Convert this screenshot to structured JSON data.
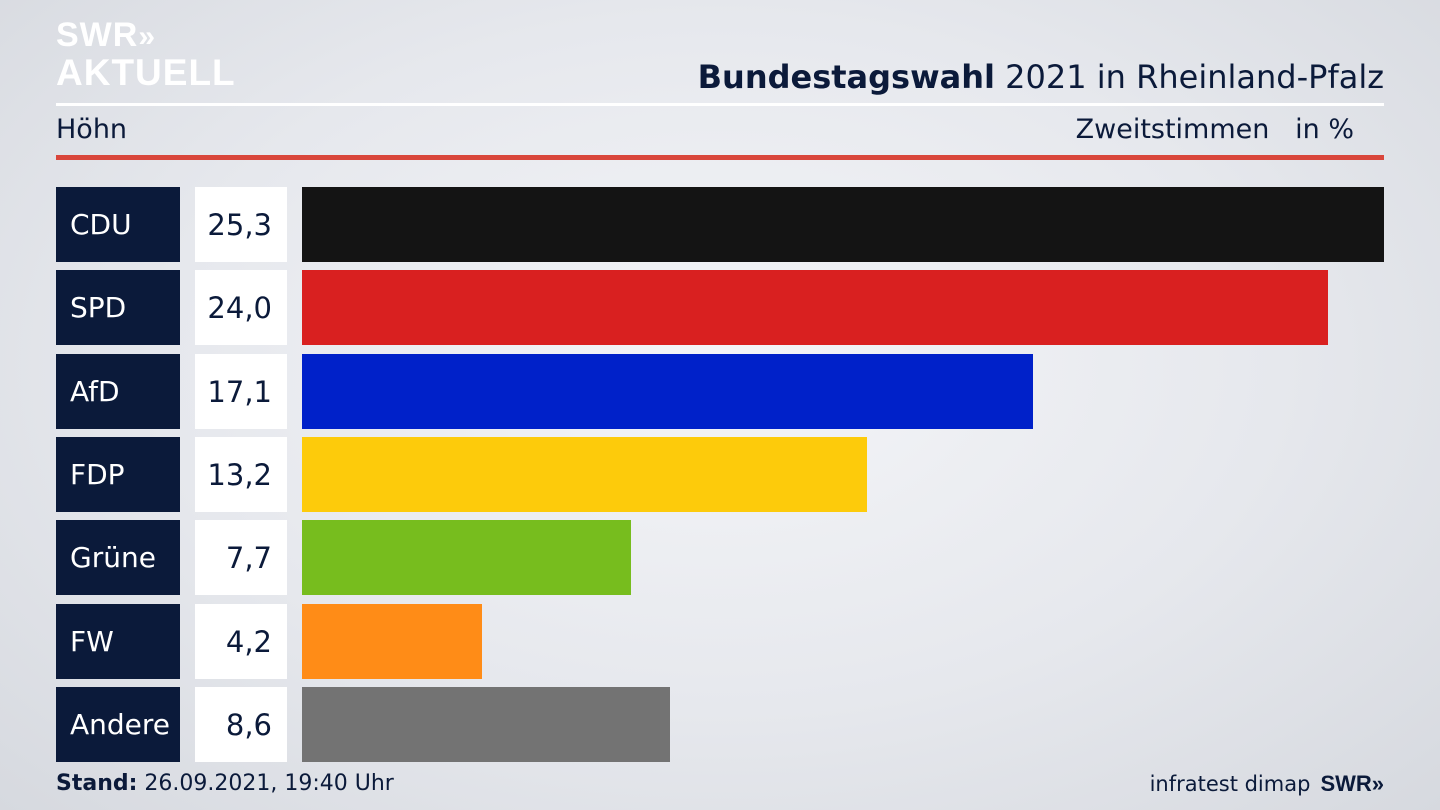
{
  "logo": {
    "line1": "SWR",
    "arrows": "»",
    "line2": "AKTUELL"
  },
  "header": {
    "title_bold": "Bundestagswahl",
    "title_rest": " 2021 in Rheinland-Pfalz",
    "region": "Höhn",
    "measure": "Zweitstimmen",
    "unit": "in %"
  },
  "chart_data": {
    "type": "bar",
    "orientation": "horizontal",
    "categories": [
      "CDU",
      "SPD",
      "AfD",
      "FDP",
      "Grüne",
      "FW",
      "Andere"
    ],
    "values": [
      25.3,
      24.0,
      17.1,
      13.2,
      7.7,
      4.2,
      8.6
    ],
    "value_labels": [
      "25,3",
      "24,0",
      "17,1",
      "13,2",
      "7,7",
      "4,2",
      "8,6"
    ],
    "colors": [
      "#141414",
      "#d92020",
      "#0021c9",
      "#fdcb0b",
      "#77bd1e",
      "#ff8c17",
      "#737373"
    ],
    "title": "Bundestagswahl 2021 in Rheinland-Pfalz",
    "xlabel": "Zweitstimmen",
    "ylabel": "",
    "unit": "in %",
    "xlim": [
      0,
      25.3
    ],
    "grid": false,
    "legend": "none"
  },
  "footer": {
    "stand_label": "Stand:",
    "stand_value": " 26.09.2021, 19:40 Uhr",
    "source": "infratest dimap",
    "brand": "SWR»"
  }
}
